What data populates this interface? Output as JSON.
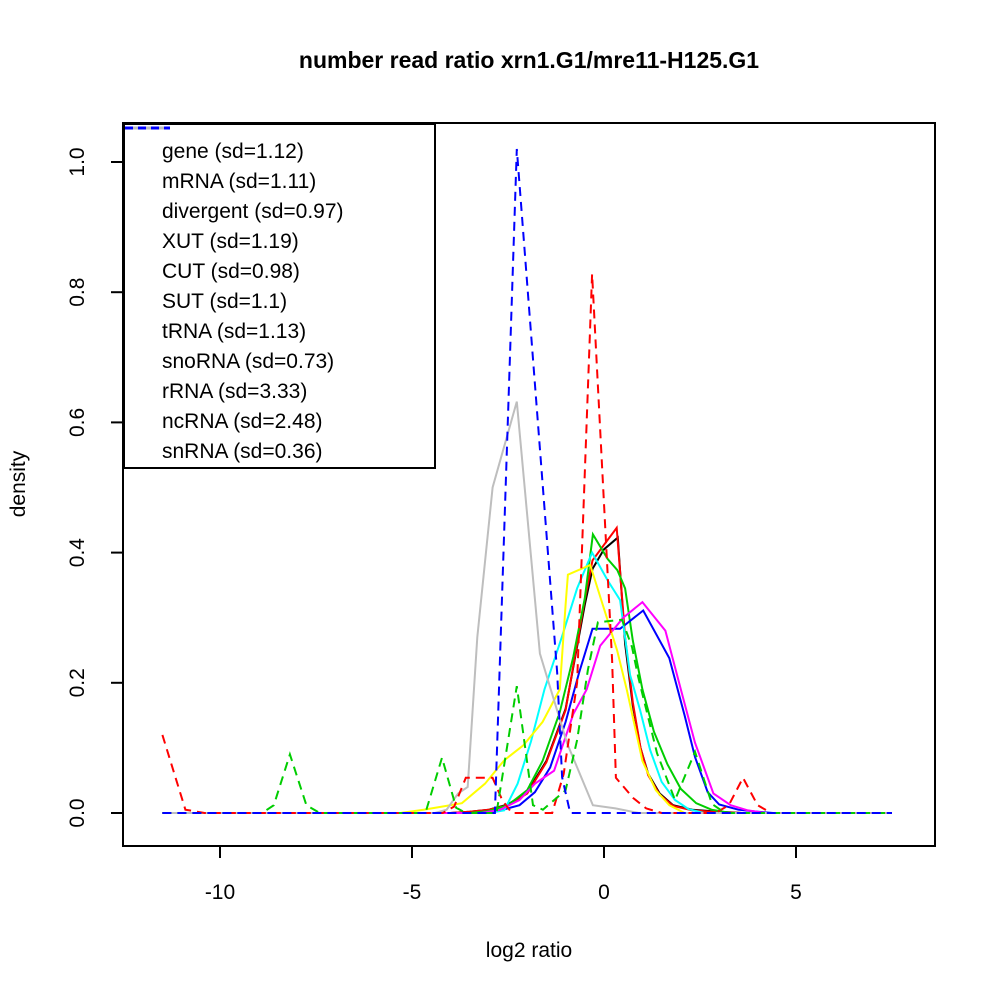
{
  "title": "number read ratio xrn1.G1/mre11-H125.G1",
  "axes": {
    "x": {
      "label": "log2 ratio",
      "ticks": [
        -10,
        -5,
        0,
        5
      ],
      "range": [
        -12.5,
        8.6
      ]
    },
    "y": {
      "label": "density",
      "ticks": [
        "0.0",
        "0.2",
        "0.4",
        "0.6",
        "0.8",
        "1.0"
      ],
      "range": [
        -0.05,
        1.06
      ]
    }
  },
  "legend": {
    "position": "topleft"
  },
  "chart_data": {
    "type": "line",
    "title": "number read ratio xrn1.G1/mre11-H125.G1",
    "xlabel": "log2 ratio",
    "ylabel": "density",
    "xlim": [
      -12.5,
      8.6
    ],
    "ylim": [
      -0.05,
      1.06
    ],
    "grid": false,
    "legend_position": "topleft",
    "series": [
      {
        "name": "gene",
        "sd": 1.12,
        "legend_label": "gene (sd=1.12)",
        "color": "#000000",
        "linestyle": "solid",
        "points": [
          [
            -11.5,
            0
          ],
          [
            -4,
            0
          ],
          [
            -3.5,
            0.002
          ],
          [
            -3,
            0.005
          ],
          [
            -2.5,
            0.013
          ],
          [
            -2,
            0.032
          ],
          [
            -1.5,
            0.08
          ],
          [
            -1,
            0.16
          ],
          [
            -0.5,
            0.32
          ],
          [
            -0.3,
            0.375
          ],
          [
            0,
            0.405
          ],
          [
            0.36,
            0.423
          ],
          [
            0.55,
            0.26
          ],
          [
            0.75,
            0.165
          ],
          [
            0.95,
            0.1
          ],
          [
            1.15,
            0.06
          ],
          [
            1.45,
            0.03
          ],
          [
            1.8,
            0.012
          ],
          [
            2.3,
            0.005
          ],
          [
            3,
            0.002
          ],
          [
            3.6,
            0
          ],
          [
            7.5,
            0
          ]
        ]
      },
      {
        "name": "mRNA",
        "sd": 1.11,
        "legend_label": "mRNA (sd=1.11)",
        "color": "#FF0000",
        "linestyle": "solid",
        "points": [
          [
            -11.5,
            0
          ],
          [
            -4,
            0
          ],
          [
            -3.5,
            0.002
          ],
          [
            -3,
            0.005
          ],
          [
            -2.5,
            0.012
          ],
          [
            -2,
            0.03
          ],
          [
            -1.5,
            0.078
          ],
          [
            -1,
            0.158
          ],
          [
            -0.5,
            0.328
          ],
          [
            -0.3,
            0.388
          ],
          [
            0,
            0.412
          ],
          [
            0.33,
            0.438
          ],
          [
            0.55,
            0.27
          ],
          [
            0.75,
            0.17
          ],
          [
            0.95,
            0.1
          ],
          [
            1.15,
            0.058
          ],
          [
            1.45,
            0.028
          ],
          [
            1.8,
            0.011
          ],
          [
            2.3,
            0.004
          ],
          [
            3,
            0.001
          ],
          [
            3.6,
            0
          ],
          [
            7.5,
            0
          ]
        ]
      },
      {
        "name": "divergent",
        "sd": 0.97,
        "legend_label": "divergent (sd=0.97)",
        "color": "#00CD00",
        "linestyle": "solid",
        "points": [
          [
            -11.5,
            0
          ],
          [
            -3.5,
            0
          ],
          [
            -3,
            0.003
          ],
          [
            -2.5,
            0.012
          ],
          [
            -2,
            0.035
          ],
          [
            -1.6,
            0.08
          ],
          [
            -1.15,
            0.155
          ],
          [
            -0.8,
            0.24
          ],
          [
            -0.5,
            0.33
          ],
          [
            -0.29,
            0.428
          ],
          [
            0.1,
            0.39
          ],
          [
            0.35,
            0.373
          ],
          [
            0.55,
            0.345
          ],
          [
            0.75,
            0.265
          ],
          [
            1,
            0.19
          ],
          [
            1.3,
            0.125
          ],
          [
            1.65,
            0.075
          ],
          [
            2,
            0.037
          ],
          [
            2.4,
            0.015
          ],
          [
            2.8,
            0.005
          ],
          [
            3.3,
            0
          ],
          [
            7.5,
            0
          ]
        ]
      },
      {
        "name": "XUT",
        "sd": 1.19,
        "legend_label": "XUT (sd=1.19)",
        "color": "#0000FF",
        "linestyle": "solid",
        "points": [
          [
            -11.5,
            0
          ],
          [
            -3.2,
            0
          ],
          [
            -2.7,
            0.004
          ],
          [
            -2.2,
            0.012
          ],
          [
            -1.8,
            0.032
          ],
          [
            -1.4,
            0.07
          ],
          [
            -1,
            0.14
          ],
          [
            -0.65,
            0.215
          ],
          [
            -0.3,
            0.283
          ],
          [
            0.42,
            0.283
          ],
          [
            1.02,
            0.311
          ],
          [
            1.7,
            0.238
          ],
          [
            2.1,
            0.15
          ],
          [
            2.37,
            0.086
          ],
          [
            2.7,
            0.032
          ],
          [
            3,
            0.013
          ],
          [
            3.5,
            0.005
          ],
          [
            4,
            0.002
          ],
          [
            4.4,
            0
          ],
          [
            7.5,
            0
          ]
        ]
      },
      {
        "name": "CUT",
        "sd": 0.98,
        "legend_label": "CUT (sd=0.98)",
        "color": "#00FFFF",
        "linestyle": "solid",
        "points": [
          [
            -11.5,
            0
          ],
          [
            -3,
            0
          ],
          [
            -2.6,
            0.004
          ],
          [
            -2.25,
            0.045
          ],
          [
            -1.9,
            0.11
          ],
          [
            -1.55,
            0.19
          ],
          [
            -1.1,
            0.27
          ],
          [
            -0.7,
            0.345
          ],
          [
            -0.31,
            0.4
          ],
          [
            0.1,
            0.357
          ],
          [
            0.42,
            0.327
          ],
          [
            0.68,
            0.212
          ],
          [
            0.94,
            0.158
          ],
          [
            1.2,
            0.097
          ],
          [
            1.5,
            0.048
          ],
          [
            1.85,
            0.02
          ],
          [
            2.2,
            0.006
          ],
          [
            2.6,
            0
          ],
          [
            7.5,
            0
          ]
        ]
      },
      {
        "name": "SUT",
        "sd": 1.1,
        "legend_label": "SUT (sd=1.1)",
        "color": "#FF00FF",
        "linestyle": "solid",
        "points": [
          [
            -11.5,
            0
          ],
          [
            -3.2,
            0
          ],
          [
            -2.7,
            0.005
          ],
          [
            -2.2,
            0.02
          ],
          [
            -1.8,
            0.045
          ],
          [
            -1.3,
            0.065
          ],
          [
            -0.8,
            0.152
          ],
          [
            -0.45,
            0.19
          ],
          [
            -0.1,
            0.257
          ],
          [
            0.5,
            0.3
          ],
          [
            1,
            0.324
          ],
          [
            1.6,
            0.28
          ],
          [
            2,
            0.19
          ],
          [
            2.37,
            0.108
          ],
          [
            2.85,
            0.03
          ],
          [
            3.3,
            0.012
          ],
          [
            3.75,
            0.004
          ],
          [
            4.2,
            0
          ],
          [
            7.5,
            0
          ]
        ]
      },
      {
        "name": "tRNA",
        "sd": 1.13,
        "legend_label": "tRNA (sd=1.13)",
        "color": "#FFFF00",
        "linestyle": "solid",
        "points": [
          [
            -11.5,
            0
          ],
          [
            -5.3,
            0
          ],
          [
            -4.7,
            0.005
          ],
          [
            -4.2,
            0.01
          ],
          [
            -3.7,
            0.015
          ],
          [
            -3.1,
            0.045
          ],
          [
            -2.6,
            0.081
          ],
          [
            -2.1,
            0.104
          ],
          [
            -1.6,
            0.14
          ],
          [
            -1.15,
            0.19
          ],
          [
            -1,
            0.32
          ],
          [
            -0.94,
            0.366
          ],
          [
            -0.36,
            0.381
          ],
          [
            0.34,
            0.25
          ],
          [
            0.6,
            0.188
          ],
          [
            1,
            0.08
          ],
          [
            1.35,
            0.035
          ],
          [
            1.7,
            0.012
          ],
          [
            2.1,
            0
          ],
          [
            7.5,
            0
          ]
        ]
      },
      {
        "name": "snoRNA",
        "sd": 0.73,
        "legend_label": "snoRNA (sd=0.73)",
        "color": "#BEBEBE",
        "linestyle": "solid",
        "points": [
          [
            -11.5,
            0
          ],
          [
            -4.4,
            0
          ],
          [
            -4.1,
            0.005
          ],
          [
            -3.8,
            0.03
          ],
          [
            -3.55,
            0.04
          ],
          [
            -3.3,
            0.27
          ],
          [
            -2.9,
            0.5
          ],
          [
            -2.27,
            0.632
          ],
          [
            -1.67,
            0.245
          ],
          [
            -0.96,
            0.107
          ],
          [
            -0.29,
            0.012
          ],
          [
            0.3,
            0.007
          ],
          [
            0.9,
            0
          ],
          [
            7.5,
            0
          ]
        ]
      },
      {
        "name": "rRNA",
        "sd": 3.33,
        "legend_label": "rRNA (sd=3.33)",
        "color": "#FF0000",
        "linestyle": "dashed",
        "points": [
          [
            -11.5,
            0.12
          ],
          [
            -10.9,
            0.005
          ],
          [
            -10.4,
            0
          ],
          [
            -4.2,
            0
          ],
          [
            -3.9,
            0.01
          ],
          [
            -3.6,
            0.054
          ],
          [
            -2.9,
            0.054
          ],
          [
            -2.65,
            0.02
          ],
          [
            -2.4,
            0
          ],
          [
            -1.35,
            0
          ],
          [
            -1.05,
            0.06
          ],
          [
            -0.7,
            0.2
          ],
          [
            -0.31,
            0.828
          ],
          [
            0.21,
            0.235
          ],
          [
            0.31,
            0.054
          ],
          [
            0.76,
            0.023
          ],
          [
            1.1,
            0.007
          ],
          [
            1.5,
            0
          ],
          [
            2.9,
            0
          ],
          [
            3.25,
            0.012
          ],
          [
            3.62,
            0.054
          ],
          [
            4,
            0.012
          ],
          [
            4.35,
            0
          ],
          [
            7.5,
            0
          ]
        ]
      },
      {
        "name": "ncRNA",
        "sd": 2.48,
        "legend_label": "ncRNA (sd=2.48)",
        "color": "#00CD00",
        "linestyle": "dashed",
        "points": [
          [
            -11.5,
            0
          ],
          [
            -8.9,
            0
          ],
          [
            -8.6,
            0.012
          ],
          [
            -8.18,
            0.09
          ],
          [
            -7.75,
            0.012
          ],
          [
            -7.4,
            0
          ],
          [
            -4.65,
            0
          ],
          [
            -4.22,
            0.085
          ],
          [
            -3.85,
            0.008
          ],
          [
            -3.6,
            0
          ],
          [
            -2.8,
            0
          ],
          [
            -2.27,
            0.195
          ],
          [
            -1.85,
            0.012
          ],
          [
            -1.59,
            0.005
          ],
          [
            -1,
            0.035
          ],
          [
            -0.7,
            0.112
          ],
          [
            -0.42,
            0.22
          ],
          [
            -0.16,
            0.293
          ],
          [
            0.47,
            0.297
          ],
          [
            0.73,
            0.255
          ],
          [
            0.89,
            0.209
          ],
          [
            1.38,
            0.092
          ],
          [
            1.85,
            0.02
          ],
          [
            2.37,
            0.094
          ],
          [
            2.81,
            0.014
          ],
          [
            3.15,
            0
          ],
          [
            7.5,
            0
          ]
        ]
      },
      {
        "name": "snRNA",
        "sd": 0.36,
        "legend_label": "snRNA (sd=0.36)",
        "color": "#0000FF",
        "linestyle": "dashed",
        "points": [
          [
            -11.5,
            0
          ],
          [
            -2.84,
            0
          ],
          [
            -2.27,
            1.02
          ],
          [
            -1.22,
            0.215
          ],
          [
            -1.09,
            0.055
          ],
          [
            -0.88,
            0
          ],
          [
            7.5,
            0
          ]
        ]
      }
    ]
  }
}
